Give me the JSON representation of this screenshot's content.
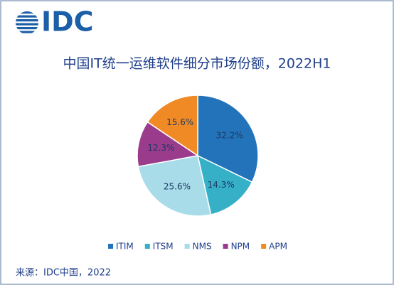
{
  "header": {
    "logo": "IDC"
  },
  "chart_data": {
    "type": "pie",
    "title": "中国IT统一运维软件细分市场份额，2022H1",
    "categories": [
      "ITIM",
      "ITSM",
      "NMS",
      "NPM",
      "APM"
    ],
    "values": [
      32.2,
      14.3,
      25.6,
      12.3,
      15.6
    ],
    "value_labels": [
      "32.2%",
      "14.3%",
      "25.6%",
      "12.3%",
      "15.6%"
    ],
    "colors": [
      "#2273b9",
      "#36b0c7",
      "#a7dce8",
      "#9a3b8c",
      "#f08a24"
    ],
    "legend": "bottom",
    "source": "来源：IDC中国，2022"
  }
}
